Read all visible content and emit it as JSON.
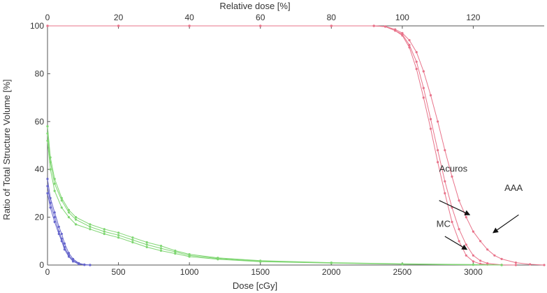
{
  "chart_data": {
    "type": "line",
    "title": "",
    "xlabel": "Dose [cGy]",
    "x2label": "Relative dose [%]",
    "ylabel": "Ratio of Total Structure Volume [%]",
    "xlim": [
      0,
      3500
    ],
    "x2lim": [
      0,
      140
    ],
    "ylim": [
      0,
      100
    ],
    "x_ticks": [
      0,
      500,
      1000,
      1500,
      2000,
      2500,
      3000
    ],
    "x2_ticks": [
      0,
      20,
      40,
      60,
      80,
      100,
      120
    ],
    "y_ticks": [
      0,
      20,
      40,
      60,
      80,
      100
    ],
    "grid": false,
    "legend": "none",
    "annotations": [
      {
        "text": "Acuros",
        "x": 2760,
        "y": 39
      },
      {
        "text": "AAA",
        "x": 3220,
        "y": 31
      },
      {
        "text": "MC",
        "x": 2740,
        "y": 16
      }
    ],
    "arrows": [
      {
        "from": [
          2760,
          27
        ],
        "to": [
          2975,
          21
        ]
      },
      {
        "from": [
          3320,
          21
        ],
        "to": [
          3140,
          13.5
        ]
      },
      {
        "from": [
          2800,
          12
        ],
        "to": [
          2955,
          6.5
        ]
      }
    ],
    "series": [
      {
        "color": "#e8738a",
        "values": [
          [
            0,
            100
          ],
          [
            500,
            100
          ],
          [
            1000,
            100
          ],
          [
            1500,
            100
          ],
          [
            2000,
            100
          ],
          [
            2300,
            100
          ],
          [
            2380,
            99.7
          ],
          [
            2450,
            98
          ],
          [
            2500,
            96
          ],
          [
            2550,
            91
          ],
          [
            2600,
            82
          ],
          [
            2650,
            70
          ],
          [
            2700,
            57
          ],
          [
            2750,
            43
          ],
          [
            2800,
            30
          ],
          [
            2850,
            18
          ],
          [
            2900,
            10
          ],
          [
            2950,
            4
          ],
          [
            3000,
            1.5
          ],
          [
            3050,
            0.5
          ],
          [
            3100,
            0.2
          ],
          [
            3200,
            0
          ]
        ]
      },
      {
        "color": "#e8738a",
        "values": [
          [
            0,
            100
          ],
          [
            500,
            100
          ],
          [
            1000,
            100
          ],
          [
            1500,
            100
          ],
          [
            2000,
            100
          ],
          [
            2300,
            100
          ],
          [
            2380,
            99.7
          ],
          [
            2450,
            98
          ],
          [
            2500,
            96.5
          ],
          [
            2550,
            92
          ],
          [
            2600,
            85
          ],
          [
            2650,
            74
          ],
          [
            2700,
            61
          ],
          [
            2750,
            48
          ],
          [
            2800,
            35
          ],
          [
            2850,
            24
          ],
          [
            2900,
            15
          ],
          [
            2950,
            8.5
          ],
          [
            3000,
            4
          ],
          [
            3050,
            1.8
          ],
          [
            3100,
            0.7
          ],
          [
            3200,
            0.1
          ],
          [
            3300,
            0
          ]
        ]
      },
      {
        "color": "#e8738a",
        "values": [
          [
            0,
            100
          ],
          [
            500,
            100
          ],
          [
            1000,
            100
          ],
          [
            1500,
            100
          ],
          [
            2000,
            100
          ],
          [
            2300,
            100
          ],
          [
            2380,
            99.8
          ],
          [
            2450,
            98.5
          ],
          [
            2500,
            97
          ],
          [
            2550,
            94
          ],
          [
            2600,
            89
          ],
          [
            2650,
            81
          ],
          [
            2700,
            71
          ],
          [
            2750,
            60
          ],
          [
            2800,
            48
          ],
          [
            2850,
            37
          ],
          [
            2900,
            27
          ],
          [
            2950,
            20
          ],
          [
            3000,
            14
          ],
          [
            3050,
            10
          ],
          [
            3100,
            6.5
          ],
          [
            3150,
            4
          ],
          [
            3200,
            2.5
          ],
          [
            3300,
            1
          ],
          [
            3400,
            0.3
          ],
          [
            3500,
            0
          ]
        ]
      },
      {
        "color": "#7fd672",
        "values": [
          [
            0,
            58
          ],
          [
            20,
            45
          ],
          [
            50,
            36
          ],
          [
            100,
            28
          ],
          [
            150,
            23
          ],
          [
            200,
            20
          ],
          [
            300,
            17
          ],
          [
            400,
            15
          ],
          [
            500,
            13.5
          ],
          [
            600,
            11.5
          ],
          [
            700,
            9.5
          ],
          [
            800,
            8
          ],
          [
            900,
            6
          ],
          [
            1000,
            4.5
          ],
          [
            1200,
            3
          ],
          [
            1500,
            1.8
          ],
          [
            2000,
            1
          ],
          [
            2500,
            0.5
          ],
          [
            3000,
            0.2
          ],
          [
            3200,
            0
          ]
        ]
      },
      {
        "color": "#7fd672",
        "values": [
          [
            0,
            55
          ],
          [
            20,
            43
          ],
          [
            50,
            34
          ],
          [
            100,
            27
          ],
          [
            150,
            22
          ],
          [
            200,
            19
          ],
          [
            300,
            16
          ],
          [
            400,
            14
          ],
          [
            500,
            12.5
          ],
          [
            600,
            10.5
          ],
          [
            700,
            8.5
          ],
          [
            800,
            7
          ],
          [
            900,
            5.5
          ],
          [
            1000,
            4
          ],
          [
            1200,
            2.7
          ],
          [
            1500,
            1.6
          ],
          [
            2000,
            0.9
          ],
          [
            2500,
            0.4
          ],
          [
            3000,
            0.15
          ],
          [
            3200,
            0
          ]
        ]
      },
      {
        "color": "#7fd672",
        "values": [
          [
            0,
            52
          ],
          [
            20,
            40
          ],
          [
            50,
            31
          ],
          [
            100,
            24
          ],
          [
            150,
            20
          ],
          [
            200,
            17
          ],
          [
            300,
            15
          ],
          [
            400,
            13
          ],
          [
            500,
            11.5
          ],
          [
            600,
            9.5
          ],
          [
            700,
            7.5
          ],
          [
            800,
            6
          ],
          [
            900,
            4.8
          ],
          [
            1000,
            3.5
          ],
          [
            1200,
            2.4
          ],
          [
            1500,
            1.4
          ],
          [
            2000,
            0.8
          ],
          [
            2500,
            0.35
          ],
          [
            3000,
            0.1
          ],
          [
            3200,
            0
          ]
        ]
      },
      {
        "color": "#6666cc",
        "values": [
          [
            0,
            36
          ],
          [
            20,
            28
          ],
          [
            50,
            22
          ],
          [
            80,
            16
          ],
          [
            100,
            13
          ],
          [
            120,
            9
          ],
          [
            150,
            5
          ],
          [
            180,
            2.5
          ],
          [
            220,
            0.8
          ],
          [
            260,
            0.2
          ],
          [
            300,
            0
          ]
        ]
      },
      {
        "color": "#6666cc",
        "values": [
          [
            0,
            33
          ],
          [
            20,
            26
          ],
          [
            50,
            20
          ],
          [
            80,
            14
          ],
          [
            100,
            11
          ],
          [
            120,
            7.5
          ],
          [
            150,
            4
          ],
          [
            180,
            2
          ],
          [
            220,
            0.6
          ],
          [
            260,
            0.1
          ],
          [
            300,
            0
          ]
        ]
      },
      {
        "color": "#6666cc",
        "values": [
          [
            0,
            30
          ],
          [
            20,
            24
          ],
          [
            50,
            18
          ],
          [
            80,
            13
          ],
          [
            100,
            10
          ],
          [
            120,
            6.5
          ],
          [
            150,
            3.5
          ],
          [
            180,
            1.5
          ],
          [
            220,
            0.4
          ],
          [
            260,
            0.1
          ],
          [
            300,
            0
          ]
        ]
      }
    ]
  }
}
